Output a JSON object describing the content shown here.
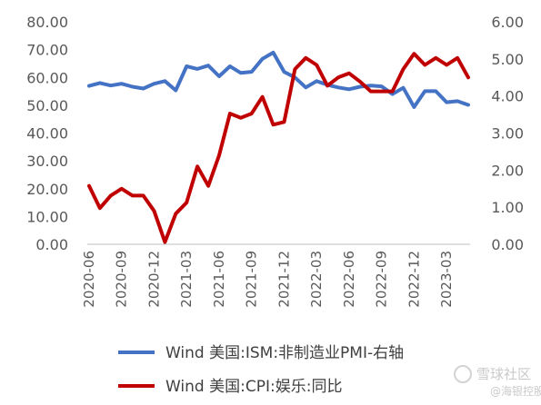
{
  "chart_data": {
    "type": "line",
    "left_axis": {
      "ylim": [
        0,
        80
      ],
      "ticks": [
        "0.00",
        "10.00",
        "20.00",
        "30.00",
        "40.00",
        "50.00",
        "60.00",
        "70.00",
        "80.00"
      ]
    },
    "right_axis": {
      "ylim": [
        0,
        6
      ],
      "ticks": [
        "0.00",
        "1.00",
        "2.00",
        "3.00",
        "4.00",
        "5.00",
        "6.00"
      ]
    },
    "x_ticks": [
      "2020-06",
      "2020-09",
      "2020-12",
      "2021-03",
      "2021-06",
      "2021-09",
      "2021-12",
      "2022-03",
      "2022-06",
      "2022-09",
      "2022-12",
      "2023-03"
    ],
    "x": [
      "2020-06",
      "2020-07",
      "2020-08",
      "2020-09",
      "2020-10",
      "2020-11",
      "2020-12",
      "2021-01",
      "2021-02",
      "2021-03",
      "2021-04",
      "2021-05",
      "2021-06",
      "2021-07",
      "2021-08",
      "2021-09",
      "2021-10",
      "2021-11",
      "2021-12",
      "2022-01",
      "2022-02",
      "2022-03",
      "2022-04",
      "2022-05",
      "2022-06",
      "2022-07",
      "2022-08",
      "2022-09",
      "2022-10",
      "2022-11",
      "2022-12",
      "2023-01",
      "2023-02",
      "2023-03",
      "2023-04",
      "2023-05"
    ],
    "series": [
      {
        "name": "Wind 美国:ISM:非制造业PMI-右轴",
        "axis": "right",
        "color": "#4472C4",
        "values": [
          4.27,
          4.35,
          4.28,
          4.33,
          4.25,
          4.2,
          4.33,
          4.4,
          4.15,
          4.8,
          4.73,
          4.82,
          4.53,
          4.8,
          4.62,
          4.65,
          5.0,
          5.17,
          4.65,
          4.5,
          4.23,
          4.4,
          4.3,
          4.23,
          4.18,
          4.25,
          4.28,
          4.26,
          4.05,
          4.22,
          3.7,
          4.13,
          4.13,
          3.83,
          3.86,
          3.76
        ]
      },
      {
        "name": "Wind 美国:CPI:娱乐:同比",
        "axis": "left",
        "color": "#C00000",
        "values": [
          21.0,
          13.0,
          17.5,
          20.0,
          17.5,
          17.5,
          12.0,
          0.8,
          11.0,
          15.0,
          28.0,
          21.0,
          32.0,
          47.0,
          45.5,
          47.0,
          53.0,
          43.0,
          44.0,
          63.0,
          67.0,
          64.5,
          57.0,
          60.0,
          61.5,
          58.5,
          55.0,
          55.0,
          55.0,
          63.0,
          68.5,
          64.5,
          67.0,
          64.5,
          67.0,
          60.0
        ]
      }
    ]
  },
  "watermark": {
    "logo_text": "雪球社区",
    "sub_text": "@海银控股"
  }
}
